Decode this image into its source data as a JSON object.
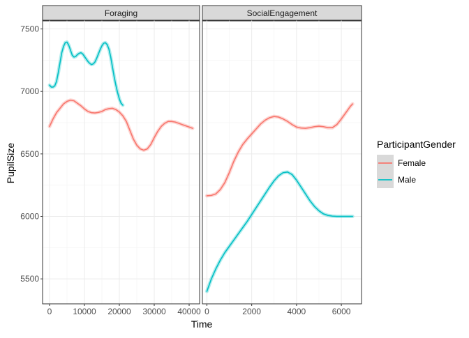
{
  "chart_data": {
    "type": "line",
    "ylabel": "PupilSize",
    "xlabel": "Time",
    "ylim": [
      5300,
      7570
    ],
    "yticks": [
      5500,
      6000,
      6500,
      7000,
      7500
    ],
    "grid": true,
    "legend": {
      "title": "ParticipantGender",
      "position": "right",
      "entries": [
        "Female",
        "Male"
      ]
    },
    "colors": {
      "Female": "#F8766D",
      "Male": "#00BFC4"
    },
    "panels": [
      {
        "title": "Foraging",
        "xlim": [
          -2000,
          43000
        ],
        "xticks": [
          0,
          10000,
          20000,
          30000,
          40000
        ],
        "series": [
          {
            "name": "Female",
            "x": [
              0,
              1000,
              2000,
              3000,
              4000,
              5000,
              6000,
              7000,
              8000,
              9000,
              10000,
              11000,
              12000,
              13000,
              14000,
              15000,
              16000,
              17000,
              18000,
              19000,
              20000,
              21000,
              22000,
              23000,
              24000,
              25000,
              26000,
              27000,
              28000,
              29000,
              30000,
              31000,
              32000,
              33000,
              34000,
              35000,
              36000,
              37000,
              38000,
              39000,
              40000,
              41000
            ],
            "y": [
              6720,
              6780,
              6830,
              6865,
              6900,
              6920,
              6930,
              6925,
              6905,
              6885,
              6860,
              6840,
              6830,
              6828,
              6832,
              6840,
              6855,
              6862,
              6865,
              6855,
              6835,
              6805,
              6760,
              6690,
              6620,
              6570,
              6540,
              6530,
              6540,
              6575,
              6630,
              6680,
              6720,
              6745,
              6760,
              6760,
              6755,
              6745,
              6735,
              6725,
              6715,
              6705
            ]
          },
          {
            "name": "Male",
            "x": [
              0,
              500,
              1000,
              1500,
              2000,
              2500,
              3000,
              3500,
              4000,
              4500,
              5000,
              5500,
              6000,
              6500,
              7000,
              7500,
              8000,
              8500,
              9000,
              9500,
              10000,
              10500,
              11000,
              11500,
              12000,
              12500,
              13000,
              13500,
              14000,
              14500,
              15000,
              15500,
              16000,
              16500,
              17000,
              17500,
              18000,
              18500,
              19000,
              19500,
              20000,
              20500,
              21000
            ],
            "y": [
              7050,
              7035,
              7035,
              7045,
              7080,
              7150,
              7230,
              7310,
              7360,
              7390,
              7395,
              7370,
              7330,
              7290,
              7275,
              7280,
              7295,
              7305,
              7310,
              7300,
              7280,
              7260,
              7240,
              7225,
              7215,
              7220,
              7235,
              7265,
              7300,
              7335,
              7365,
              7385,
              7390,
              7375,
              7340,
              7280,
              7200,
              7120,
              7050,
              6990,
              6940,
              6905,
              6890
            ]
          }
        ]
      },
      {
        "title": "SocialEngagement",
        "xlim": [
          -200,
          6900
        ],
        "xticks": [
          0,
          2000,
          4000,
          6000
        ],
        "series": [
          {
            "name": "Female",
            "x": [
              0,
              200,
              400,
              600,
              800,
              1000,
              1200,
              1400,
              1600,
              1800,
              2000,
              2200,
              2400,
              2600,
              2800,
              3000,
              3200,
              3400,
              3600,
              3800,
              4000,
              4200,
              4400,
              4600,
              4800,
              5000,
              5200,
              5400,
              5600,
              5800,
              6000,
              6200,
              6400,
              6500
            ],
            "y": [
              6165,
              6168,
              6180,
              6215,
              6270,
              6350,
              6440,
              6515,
              6575,
              6620,
              6660,
              6700,
              6740,
              6770,
              6790,
              6800,
              6795,
              6780,
              6760,
              6735,
              6715,
              6707,
              6705,
              6710,
              6718,
              6722,
              6718,
              6710,
              6710,
              6735,
              6780,
              6830,
              6880,
              6900
            ]
          },
          {
            "name": "Male",
            "x": [
              0,
              200,
              400,
              600,
              800,
              1000,
              1200,
              1400,
              1600,
              1800,
              2000,
              2200,
              2400,
              2600,
              2800,
              3000,
              3200,
              3400,
              3600,
              3800,
              4000,
              4200,
              4400,
              4600,
              4800,
              5000,
              5200,
              5400,
              5600,
              5800,
              6000,
              6200,
              6400,
              6500
            ],
            "y": [
              5400,
              5500,
              5580,
              5650,
              5710,
              5760,
              5810,
              5860,
              5910,
              5960,
              6015,
              6070,
              6125,
              6180,
              6235,
              6285,
              6325,
              6350,
              6355,
              6335,
              6290,
              6235,
              6180,
              6125,
              6080,
              6045,
              6020,
              6008,
              6002,
              6000,
              6000,
              6000,
              6000,
              6000
            ]
          }
        ]
      }
    ]
  }
}
